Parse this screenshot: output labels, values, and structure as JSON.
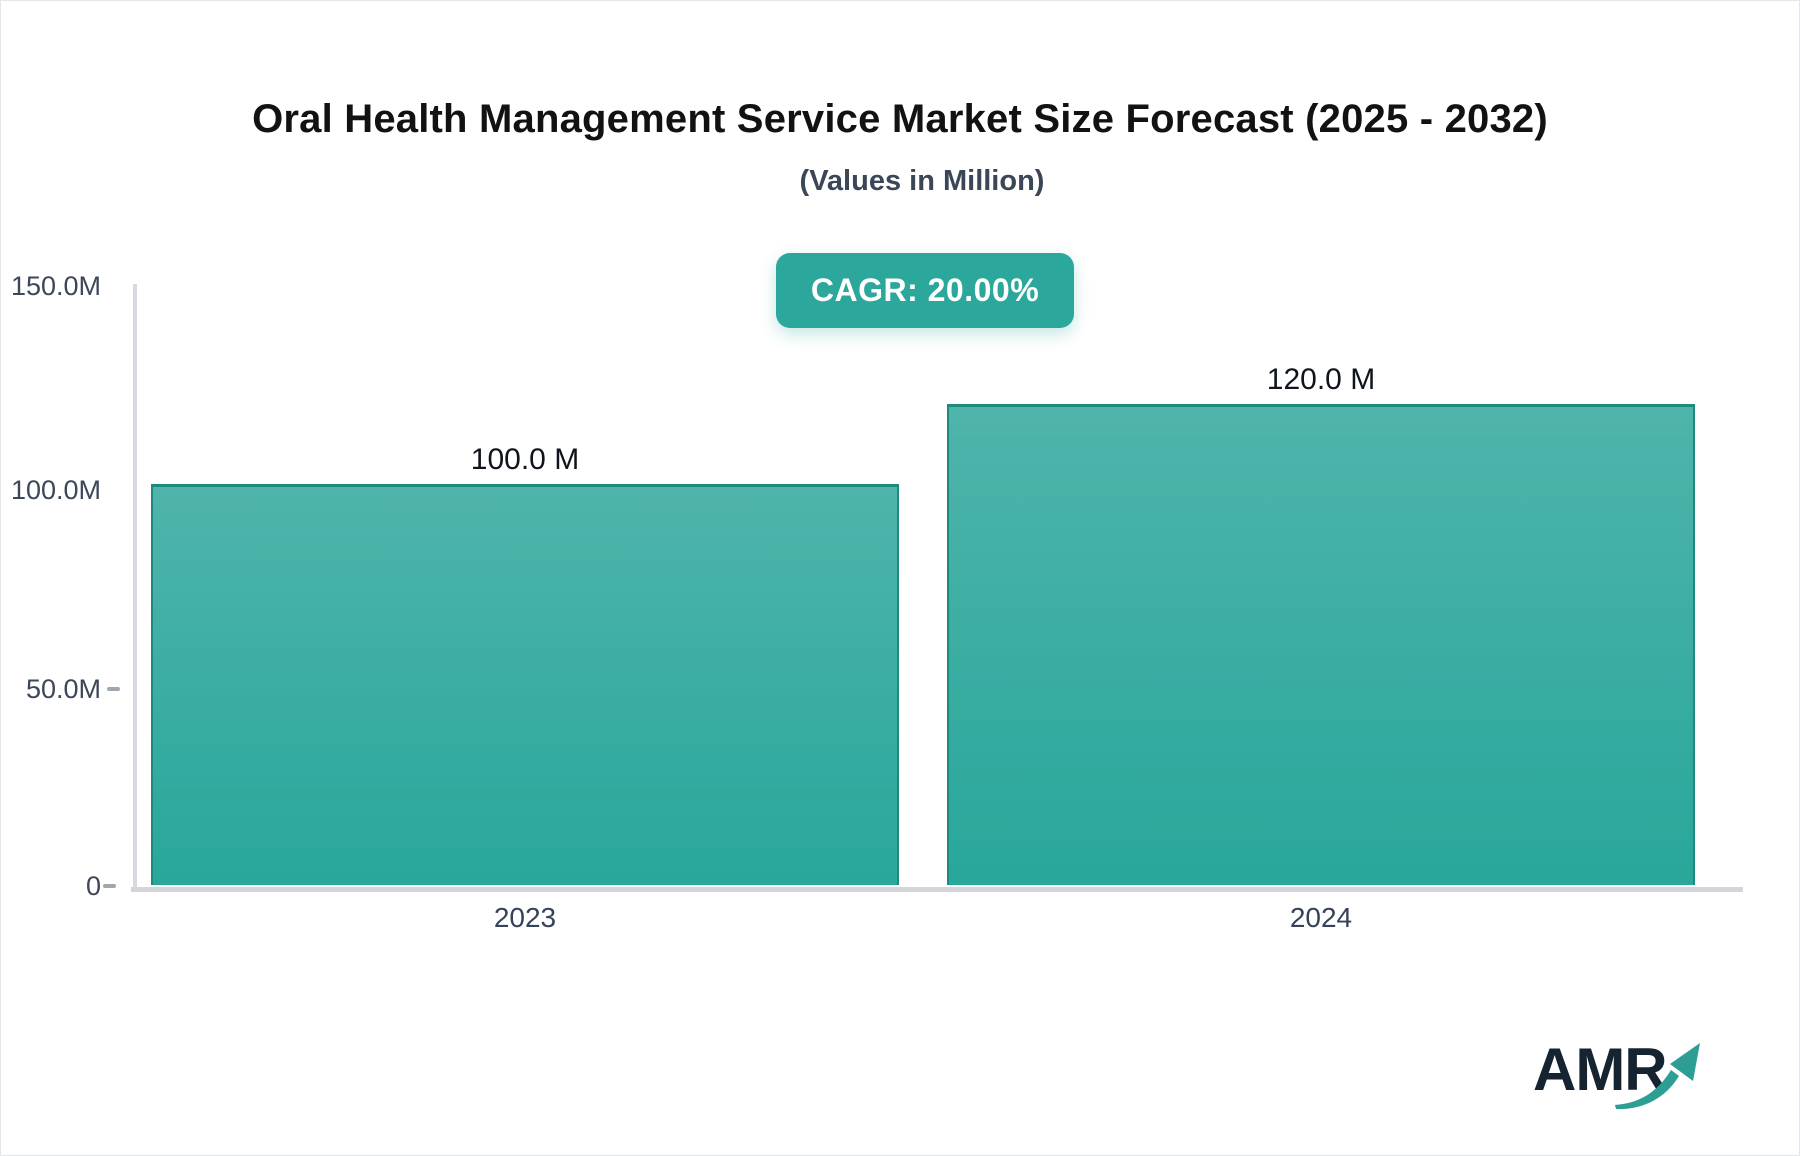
{
  "header": {
    "title": "Oral Health Management Service Market Size Forecast (2025 - 2032)",
    "subtitle": "(Values in Million)",
    "cagr_badge": "CAGR: 20.00%"
  },
  "chart_data": {
    "type": "bar",
    "title": "Oral Health Management Service Market Size Forecast (2025 - 2032)",
    "subtitle": "(Values in Million)",
    "unit": "Million",
    "cagr_percent": 20.0,
    "categories": [
      "2023",
      "2024"
    ],
    "values": [
      100.0,
      120.0
    ],
    "value_labels": [
      "100.0 M",
      "120.0 M"
    ],
    "ylim": [
      0,
      150
    ],
    "ytick_labels": [
      "150.0M",
      "100.0M",
      "50.0M",
      "0"
    ],
    "grid": false,
    "legend": false,
    "colors": {
      "bar_top": "#4fb4ac",
      "bar_bottom": "#28a79a",
      "bar_border": "#20897e",
      "accent": "#2ba89b",
      "axis_line": "#d6d9de",
      "label_text": "#3c4759"
    }
  },
  "logo": {
    "text": "AMR",
    "arrow_color": "#2e9d93"
  }
}
